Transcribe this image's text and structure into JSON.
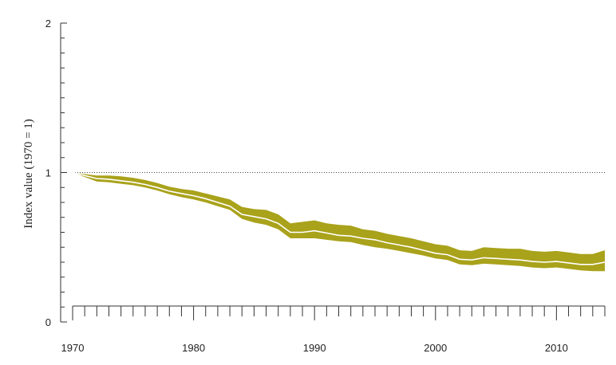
{
  "chart_data": {
    "type": "area",
    "ylabel": "Index value (1970 = 1)",
    "xlabel": "",
    "xlim": [
      1970,
      2014
    ],
    "ylim": [
      0,
      2
    ],
    "x_ticks": [
      "1970",
      "1980",
      "1990",
      "2000",
      "2010"
    ],
    "y_ticks": [
      "0",
      "1",
      "2"
    ],
    "reference_line": {
      "y": 1,
      "style": "dotted"
    },
    "band_color": "#a9a21b",
    "line_color": "#ffffff",
    "x": [
      1970,
      1971,
      1972,
      1973,
      1974,
      1975,
      1976,
      1977,
      1978,
      1979,
      1980,
      1981,
      1982,
      1983,
      1984,
      1985,
      1986,
      1987,
      1988,
      1989,
      1990,
      1991,
      1992,
      1993,
      1994,
      1995,
      1996,
      1997,
      1998,
      1999,
      2000,
      2001,
      2002,
      2003,
      2004,
      2005,
      2006,
      2007,
      2008,
      2009,
      2010,
      2011,
      2012,
      2013,
      2014
    ],
    "mean": [
      1.0,
      0.98,
      0.96,
      0.955,
      0.945,
      0.935,
      0.92,
      0.9,
      0.875,
      0.86,
      0.845,
      0.825,
      0.8,
      0.775,
      0.72,
      0.705,
      0.69,
      0.66,
      0.6,
      0.6,
      0.61,
      0.595,
      0.58,
      0.575,
      0.56,
      0.55,
      0.53,
      0.515,
      0.5,
      0.48,
      0.46,
      0.45,
      0.42,
      0.415,
      0.43,
      0.425,
      0.42,
      0.415,
      0.405,
      0.4,
      0.405,
      0.395,
      0.385,
      0.385,
      0.4
    ],
    "upper": [
      1.0,
      0.99,
      0.98,
      0.98,
      0.975,
      0.965,
      0.95,
      0.93,
      0.905,
      0.89,
      0.88,
      0.86,
      0.84,
      0.82,
      0.77,
      0.755,
      0.75,
      0.72,
      0.66,
      0.67,
      0.68,
      0.66,
      0.65,
      0.645,
      0.62,
      0.61,
      0.59,
      0.575,
      0.56,
      0.54,
      0.52,
      0.51,
      0.48,
      0.475,
      0.5,
      0.495,
      0.49,
      0.49,
      0.475,
      0.47,
      0.475,
      0.465,
      0.455,
      0.455,
      0.48
    ],
    "lower": [
      1.0,
      0.97,
      0.94,
      0.935,
      0.925,
      0.915,
      0.9,
      0.88,
      0.855,
      0.835,
      0.82,
      0.8,
      0.775,
      0.75,
      0.69,
      0.665,
      0.65,
      0.62,
      0.56,
      0.56,
      0.56,
      0.55,
      0.54,
      0.535,
      0.515,
      0.5,
      0.49,
      0.475,
      0.46,
      0.445,
      0.425,
      0.415,
      0.385,
      0.38,
      0.39,
      0.385,
      0.38,
      0.375,
      0.365,
      0.36,
      0.365,
      0.355,
      0.345,
      0.34,
      0.34
    ]
  }
}
